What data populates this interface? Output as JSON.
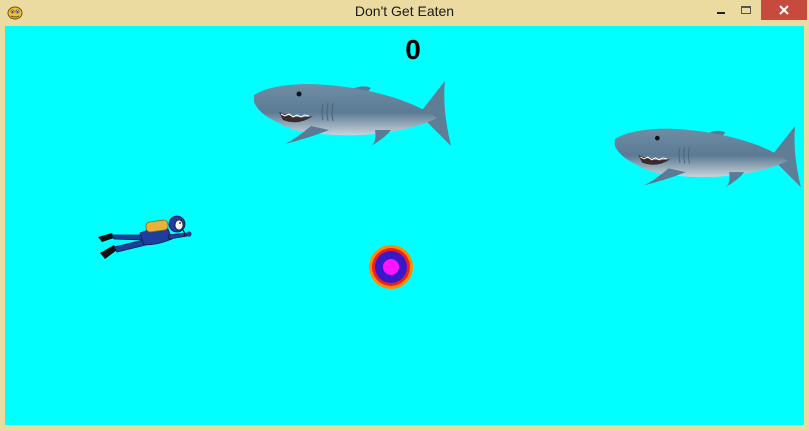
{
  "window": {
    "title": "Don't Get Eaten",
    "frame_color": "#ecdba0",
    "close_color": "#c74a3f",
    "app_icon": "pygame-snake-icon"
  },
  "game": {
    "background_color": "#00ffff",
    "score": "0",
    "sprites": {
      "player": "scuba-diver",
      "enemies": [
        "shark",
        "shark"
      ],
      "pickup": "target-orb"
    }
  }
}
